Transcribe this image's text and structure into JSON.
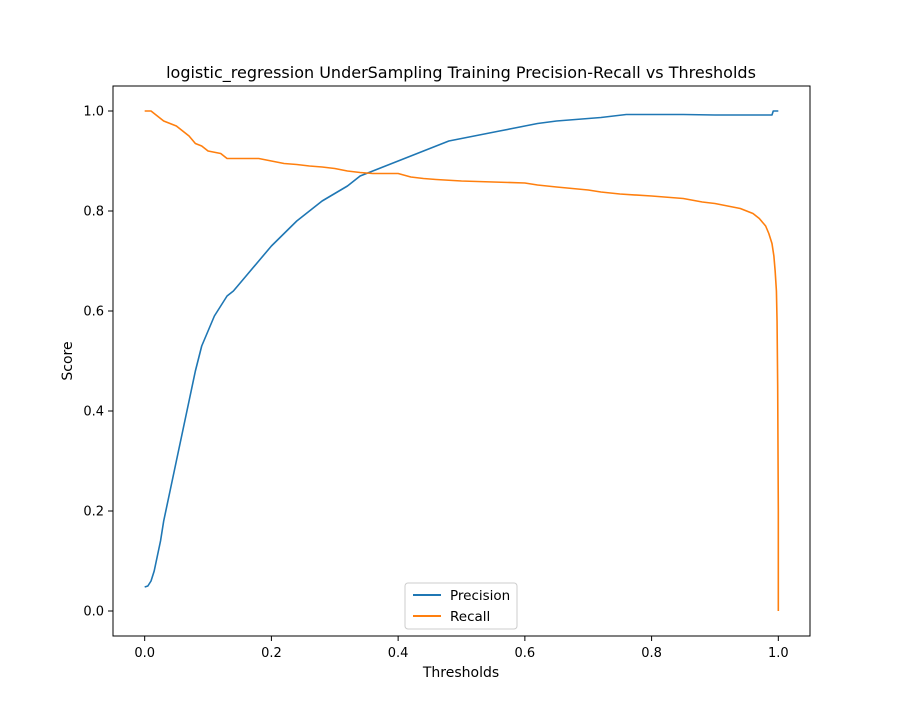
{
  "chart_data": {
    "type": "line",
    "title": "logistic_regression UnderSampling Training Precision-Recall vs Thresholds",
    "xlabel": "Thresholds",
    "ylabel": "Score",
    "xlim": [
      -0.05,
      1.05
    ],
    "ylim": [
      -0.05,
      1.05
    ],
    "xticks": [
      0.0,
      0.2,
      0.4,
      0.6,
      0.8,
      1.0
    ],
    "xtick_labels": [
      "0.0",
      "0.2",
      "0.4",
      "0.6",
      "0.8",
      "1.0"
    ],
    "yticks": [
      0.0,
      0.2,
      0.4,
      0.6,
      0.8,
      1.0
    ],
    "ytick_labels": [
      "0.0",
      "0.2",
      "0.4",
      "0.6",
      "0.8",
      "1.0"
    ],
    "grid": false,
    "legend_position": "lower center",
    "series": [
      {
        "name": "Precision",
        "color": "#1f77b4",
        "x": [
          0.0,
          0.005,
          0.01,
          0.015,
          0.02,
          0.025,
          0.03,
          0.04,
          0.05,
          0.06,
          0.07,
          0.08,
          0.09,
          0.1,
          0.11,
          0.12,
          0.13,
          0.14,
          0.15,
          0.16,
          0.18,
          0.2,
          0.22,
          0.24,
          0.26,
          0.28,
          0.3,
          0.32,
          0.34,
          0.36,
          0.38,
          0.4,
          0.42,
          0.44,
          0.46,
          0.48,
          0.5,
          0.52,
          0.54,
          0.56,
          0.58,
          0.6,
          0.62,
          0.65,
          0.7,
          0.72,
          0.74,
          0.76,
          0.8,
          0.85,
          0.9,
          0.95,
          0.99,
          0.992,
          1.0
        ],
        "y": [
          0.048,
          0.05,
          0.06,
          0.08,
          0.11,
          0.14,
          0.18,
          0.24,
          0.3,
          0.36,
          0.42,
          0.48,
          0.53,
          0.56,
          0.59,
          0.61,
          0.63,
          0.64,
          0.655,
          0.67,
          0.7,
          0.73,
          0.755,
          0.78,
          0.8,
          0.82,
          0.835,
          0.85,
          0.87,
          0.88,
          0.89,
          0.9,
          0.91,
          0.92,
          0.93,
          0.94,
          0.945,
          0.95,
          0.955,
          0.96,
          0.965,
          0.97,
          0.975,
          0.98,
          0.985,
          0.987,
          0.99,
          0.993,
          0.993,
          0.993,
          0.992,
          0.992,
          0.992,
          1.0,
          1.0
        ]
      },
      {
        "name": "Recall",
        "color": "#ff7f0e",
        "x": [
          0.0,
          0.01,
          0.02,
          0.03,
          0.04,
          0.05,
          0.06,
          0.07,
          0.08,
          0.09,
          0.1,
          0.12,
          0.13,
          0.15,
          0.18,
          0.2,
          0.22,
          0.24,
          0.26,
          0.28,
          0.3,
          0.32,
          0.34,
          0.36,
          0.38,
          0.4,
          0.42,
          0.44,
          0.46,
          0.5,
          0.55,
          0.6,
          0.62,
          0.65,
          0.7,
          0.72,
          0.75,
          0.8,
          0.85,
          0.88,
          0.9,
          0.92,
          0.94,
          0.96,
          0.97,
          0.98,
          0.985,
          0.99,
          0.993,
          0.995,
          0.997,
          0.998,
          0.999,
          1.0,
          1.0
        ],
        "y": [
          1.0,
          1.0,
          0.99,
          0.98,
          0.975,
          0.97,
          0.96,
          0.95,
          0.935,
          0.93,
          0.92,
          0.915,
          0.905,
          0.905,
          0.905,
          0.9,
          0.895,
          0.893,
          0.89,
          0.888,
          0.885,
          0.88,
          0.877,
          0.875,
          0.875,
          0.875,
          0.868,
          0.865,
          0.863,
          0.86,
          0.858,
          0.856,
          0.852,
          0.848,
          0.842,
          0.838,
          0.834,
          0.83,
          0.825,
          0.818,
          0.815,
          0.81,
          0.805,
          0.795,
          0.785,
          0.77,
          0.755,
          0.735,
          0.71,
          0.68,
          0.64,
          0.58,
          0.45,
          0.2,
          0.0
        ]
      }
    ]
  }
}
